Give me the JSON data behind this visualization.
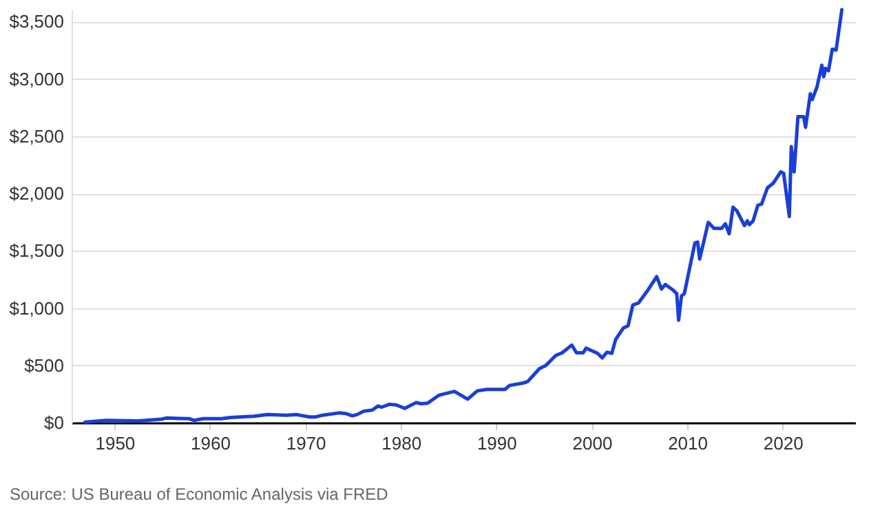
{
  "chart_data": {
    "type": "line",
    "x": [
      1946.9,
      1949.1,
      1952.5,
      1954.9,
      1955.4,
      1957.8,
      1958.3,
      1959.3,
      1961.2,
      1962.2,
      1964.6,
      1966.0,
      1968.0,
      1969.1,
      1970.4,
      1971.1,
      1971.8,
      1973.5,
      1974.2,
      1974.9,
      1975.4,
      1976.1,
      1977.0,
      1977.6,
      1978.0,
      1978.8,
      1979.5,
      1980.4,
      1981.6,
      1982.1,
      1982.8,
      1984.0,
      1985.6,
      1987.0,
      1988.0,
      1989.0,
      1990.9,
      1991.4,
      1992.8,
      1993.3,
      1994.5,
      1995.2,
      1996.2,
      1996.9,
      1997.9,
      1998.4,
      1999.1,
      1999.4,
      2000.6,
      2001.1,
      2001.6,
      2002.1,
      2002.5,
      2003.3,
      2003.8,
      2004.3,
      2004.9,
      2005.8,
      2006.8,
      2007.3,
      2007.7,
      2008.5,
      2008.9,
      2009.1,
      2009.4,
      2009.7,
      2010.1,
      2010.4,
      2010.8,
      2011.1,
      2011.3,
      2011.7,
      2012.2,
      2012.8,
      2013.6,
      2014.0,
      2014.4,
      2014.8,
      2015.2,
      2016.0,
      2016.3,
      2016.5,
      2016.9,
      2017.4,
      2017.8,
      2018.4,
      2019.0,
      2019.8,
      2020.1,
      2020.7,
      2020.9,
      2021.2,
      2021.6,
      2022.2,
      2022.4,
      2022.9,
      2023.1,
      2023.6,
      2024.1,
      2024.3,
      2024.5,
      2024.8,
      2025.2,
      2025.6,
      2026.2
    ],
    "series": [
      {
        "color": "#1a3fd6",
        "values": [
          5,
          20,
          15,
          30,
          40,
          35,
          20,
          35,
          35,
          45,
          55,
          70,
          65,
          70,
          50,
          50,
          65,
          85,
          80,
          60,
          70,
          100,
          110,
          145,
          135,
          160,
          155,
          125,
          175,
          165,
          170,
          240,
          273,
          205,
          277,
          290,
          290,
          325,
          345,
          360,
          470,
          500,
          585,
          610,
          677,
          610,
          610,
          650,
          605,
          565,
          615,
          605,
          725,
          825,
          845,
          1027,
          1045,
          1147,
          1275,
          1166,
          1206,
          1158,
          1126,
          894,
          1106,
          1126,
          1287,
          1407,
          1568,
          1576,
          1428,
          1568,
          1748,
          1696,
          1696,
          1736,
          1648,
          1881,
          1849,
          1720,
          1761,
          1728,
          1761,
          1897,
          1909,
          2049,
          2089,
          2189,
          2177,
          1800,
          2410,
          2189,
          2671,
          2671,
          2578,
          2871,
          2820,
          2932,
          3120,
          3020,
          3092,
          3072,
          3260,
          3252,
          3605
        ]
      }
    ],
    "xlim": [
      1945.5,
      2027.6
    ],
    "xticks": [
      1950,
      1960,
      1970,
      1980,
      1990,
      2000,
      2010,
      2020
    ],
    "ylim": [
      0,
      3605
    ],
    "yticks": [
      {
        "value": 0,
        "label": "$0"
      },
      {
        "value": 500,
        "label": "$500"
      },
      {
        "value": 1000,
        "label": "$1,000"
      },
      {
        "value": 1500,
        "label": "$1,500"
      },
      {
        "value": 2000,
        "label": "$2,000"
      },
      {
        "value": 2500,
        "label": "$2,500"
      },
      {
        "value": 3000,
        "label": "$3,000"
      },
      {
        "value": 3500,
        "label": "$3,500"
      }
    ],
    "grid": "y",
    "line_style": "solid",
    "marker": "none",
    "annotations": [
      "Source: US Bureau of Economic Analysis via FRED"
    ]
  }
}
